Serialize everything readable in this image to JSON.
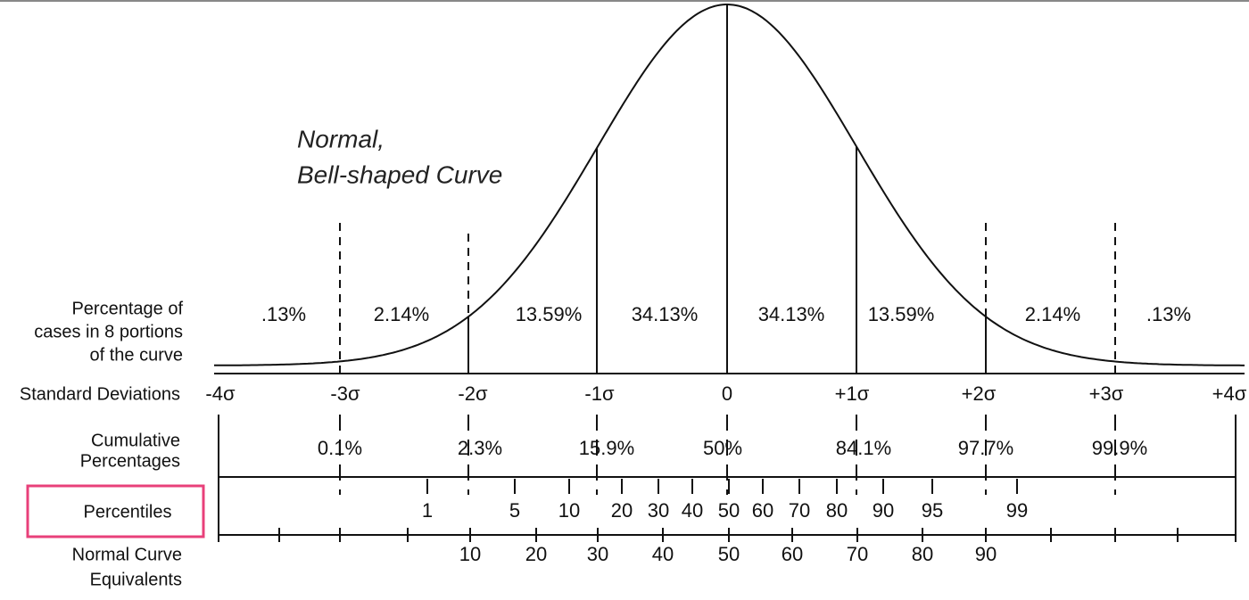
{
  "title": [
    "Normal,",
    "Bell-shaped Curve"
  ],
  "row_labels": {
    "portions": [
      "Percentage of",
      "cases in 8 portions",
      "of the curve"
    ],
    "standard_deviations": "Standard Deviations",
    "cumulative": [
      "Cumulative",
      "Percentages"
    ],
    "percentiles": "Percentiles",
    "nce": [
      "Normal Curve",
      "Equivalents"
    ]
  },
  "portions": [
    ".13%",
    "2.14%",
    "13.59%",
    "34.13%",
    "34.13%",
    "13.59%",
    "2.14%",
    ".13%"
  ],
  "standard_deviations": [
    "-4σ",
    "-3σ",
    "-2σ",
    "-1σ",
    "0",
    "+1σ",
    "+2σ",
    "+3σ",
    "+4σ"
  ],
  "cumulative_percentages": [
    "0.1%",
    "2.3%",
    "15.9%",
    "50%",
    "84.1%",
    "97.7%",
    "99.9%"
  ],
  "percentiles": [
    1,
    5,
    10,
    20,
    30,
    40,
    50,
    60,
    70,
    80,
    90,
    95,
    99
  ],
  "nce": [
    10,
    20,
    30,
    40,
    50,
    60,
    70,
    80,
    90
  ]
}
